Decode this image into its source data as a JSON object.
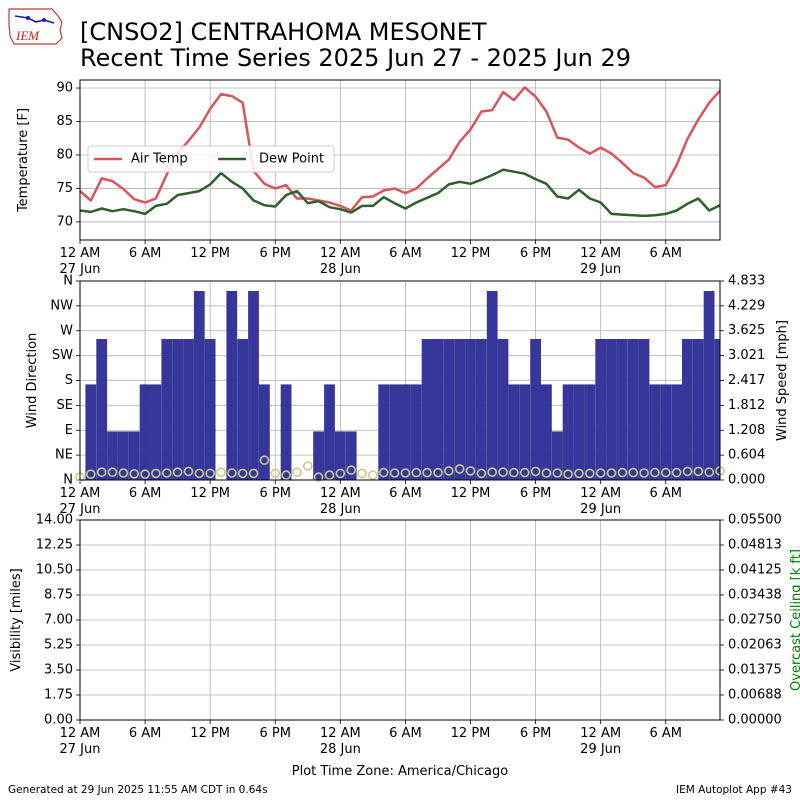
{
  "header": {
    "logo_text": "IEM",
    "title_line1": "[CNSO2] CENTRAHOMA MESONET",
    "title_line2": "Recent Time Series 2025 Jun 27 - 2025 Jun 29"
  },
  "footer": {
    "generated": "Generated at 29 Jun 2025 11:55 AM CDT in 0.64s",
    "app": "IEM Autoplot App #43"
  },
  "colors": {
    "air_temp": "#d9545c",
    "dew_point": "#2f5f2f",
    "wind_dir_bars": "#333399",
    "wind_speed_markers": "#c8c88c",
    "ceiling_label": "#008000",
    "grid": "#b0b0b0"
  },
  "chart_data": [
    {
      "type": "line",
      "title": "",
      "xlabel": "",
      "ylabel": "Temperature [F]",
      "ylim": [
        67.3,
        91.2
      ],
      "xlim_hours": [
        0,
        59
      ],
      "x_ticks": [
        "12 AM",
        "6 AM",
        "12 PM",
        "6 PM",
        "12 AM",
        "6 AM",
        "12 PM",
        "6 PM",
        "12 AM",
        "6 AM"
      ],
      "x_tick_hours": [
        0,
        6,
        12,
        18,
        24,
        30,
        36,
        42,
        48,
        54
      ],
      "date_labels": [
        {
          "hour": 0,
          "text": "27 Jun"
        },
        {
          "hour": 24,
          "text": "28 Jun"
        },
        {
          "hour": 48,
          "text": "29 Jun"
        }
      ],
      "y_ticks": [
        70,
        75,
        80,
        85,
        90
      ],
      "grid": true,
      "legend": "center-left",
      "series": [
        {
          "name": "Air Temp",
          "x": [
            0,
            1,
            2,
            3,
            4,
            5,
            6,
            7,
            8,
            9,
            10,
            11,
            12,
            13,
            14,
            15,
            16,
            17,
            18,
            19,
            20,
            21,
            22,
            23,
            24,
            25,
            26,
            27,
            28,
            29,
            30,
            31,
            32,
            33,
            34,
            35,
            36,
            37,
            38,
            39,
            40,
            41,
            42,
            43,
            44,
            45,
            46,
            47,
            48,
            49,
            50,
            51,
            52,
            53,
            54,
            55,
            56,
            57,
            58,
            59
          ],
          "values": [
            74.6,
            73.2,
            76.5,
            76.1,
            74.9,
            73.4,
            72.9,
            73.5,
            77.1,
            80.3,
            82.1,
            84.1,
            86.9,
            89.1,
            88.8,
            87.8,
            77.6,
            75.7,
            75.0,
            75.5,
            73.5,
            73.5,
            73.2,
            72.9,
            72.4,
            71.7,
            73.7,
            73.8,
            74.7,
            75.0,
            74.3,
            75.0,
            76.5,
            77.9,
            79.3,
            82.0,
            83.8,
            86.5,
            86.7,
            89.4,
            88.2,
            90.1,
            88.7,
            86.5,
            82.6,
            82.3,
            81.1,
            80.2,
            81.1,
            80.2,
            78.8,
            77.3,
            76.6,
            75.2,
            75.5,
            78.5,
            82.4,
            85.3,
            87.8,
            89.6
          ]
        },
        {
          "name": "Dew Point",
          "x": [
            0,
            1,
            2,
            3,
            4,
            5,
            6,
            7,
            8,
            9,
            10,
            11,
            12,
            13,
            14,
            15,
            16,
            17,
            18,
            19,
            20,
            21,
            22,
            23,
            24,
            25,
            26,
            27,
            28,
            29,
            30,
            31,
            32,
            33,
            34,
            35,
            36,
            37,
            38,
            39,
            40,
            41,
            42,
            43,
            44,
            45,
            46,
            47,
            48,
            49,
            50,
            51,
            52,
            53,
            54,
            55,
            56,
            57,
            58,
            59
          ],
          "values": [
            71.7,
            71.5,
            72.0,
            71.6,
            71.9,
            71.6,
            71.2,
            72.4,
            72.7,
            74.0,
            74.3,
            74.6,
            75.6,
            77.3,
            76.0,
            75.0,
            73.2,
            72.5,
            72.3,
            74.0,
            74.6,
            72.8,
            73.1,
            72.2,
            71.9,
            71.4,
            72.4,
            72.4,
            73.7,
            72.8,
            72.0,
            72.9,
            73.6,
            74.3,
            75.6,
            76.0,
            75.7,
            76.3,
            77.0,
            77.8,
            77.5,
            77.2,
            76.4,
            75.7,
            73.8,
            73.5,
            74.8,
            73.5,
            72.9,
            71.2,
            71.1,
            71.0,
            70.9,
            71.0,
            71.2,
            71.7,
            72.7,
            73.5,
            71.7,
            72.5
          ]
        }
      ]
    },
    {
      "type": "bar",
      "title": "",
      "xlabel": "",
      "ylabel": "Wind Direction",
      "y2label": "Wind Speed [mph]",
      "ylim": [
        0,
        360
      ],
      "y2lim": [
        0,
        4.833
      ],
      "x_ticks": [
        "12 AM",
        "6 AM",
        "12 PM",
        "6 PM",
        "12 AM",
        "6 AM",
        "12 PM",
        "6 PM",
        "12 AM",
        "6 AM"
      ],
      "x_tick_hours": [
        0,
        6,
        12,
        18,
        24,
        30,
        36,
        42,
        48,
        54
      ],
      "date_labels": [
        {
          "hour": 0,
          "text": "27 Jun"
        },
        {
          "hour": 24,
          "text": "28 Jun"
        },
        {
          "hour": 48,
          "text": "29 Jun"
        }
      ],
      "y_ticks": [
        "N",
        "NE",
        "E",
        "SE",
        "S",
        "SW",
        "W",
        "NW",
        "N"
      ],
      "y_tick_values": [
        0,
        45,
        90,
        135,
        180,
        225,
        270,
        315,
        360
      ],
      "y2_ticks": [
        "0.000",
        "0.604",
        "1.208",
        "1.812",
        "2.417",
        "3.021",
        "3.625",
        "4.229",
        "4.833"
      ],
      "grid": true,
      "series": [
        {
          "name": "Wind Direction",
          "x": [
            0,
            1,
            2,
            3,
            4,
            5,
            6,
            7,
            8,
            9,
            10,
            11,
            12,
            13,
            14,
            15,
            16,
            17,
            18,
            19,
            20,
            21,
            22,
            23,
            24,
            25,
            26,
            27,
            28,
            29,
            30,
            31,
            32,
            33,
            34,
            35,
            36,
            37,
            38,
            39,
            40,
            41,
            42,
            43,
            44,
            45,
            46,
            47,
            48,
            49,
            50,
            51,
            52,
            53,
            54,
            55,
            56,
            57,
            58,
            59
          ],
          "values": [
            0,
            173,
            255,
            88,
            88,
            88,
            173,
            173,
            255,
            255,
            255,
            342,
            255,
            0,
            342,
            255,
            342,
            173,
            0,
            173,
            0,
            0,
            88,
            173,
            88,
            88,
            0,
            0,
            173,
            173,
            173,
            173,
            255,
            255,
            255,
            255,
            255,
            255,
            342,
            255,
            173,
            173,
            255,
            173,
            88,
            173,
            173,
            173,
            255,
            255,
            255,
            255,
            255,
            173,
            173,
            173,
            255,
            255,
            342,
            255
          ]
        },
        {
          "name": "Wind Speed",
          "x": [
            0,
            1,
            2,
            3,
            4,
            5,
            6,
            7,
            8,
            9,
            10,
            11,
            12,
            13,
            14,
            15,
            16,
            17,
            18,
            19,
            20,
            21,
            22,
            23,
            24,
            25,
            26,
            27,
            28,
            29,
            30,
            31,
            32,
            33,
            34,
            35,
            36,
            37,
            38,
            39,
            40,
            41,
            42,
            43,
            44,
            45,
            46,
            47,
            48,
            49,
            50,
            51,
            52,
            53,
            54,
            55,
            56,
            57,
            58,
            59
          ],
          "values": [
            0.07,
            0.14,
            0.19,
            0.19,
            0.17,
            0.15,
            0.14,
            0.16,
            0.17,
            0.19,
            0.21,
            0.16,
            0.16,
            0.19,
            0.17,
            0.16,
            0.16,
            0.48,
            0.16,
            0.12,
            0.19,
            0.34,
            0.07,
            0.12,
            0.16,
            0.24,
            0.16,
            0.12,
            0.18,
            0.17,
            0.17,
            0.18,
            0.18,
            0.18,
            0.22,
            0.27,
            0.22,
            0.16,
            0.19,
            0.19,
            0.18,
            0.18,
            0.21,
            0.17,
            0.17,
            0.14,
            0.16,
            0.16,
            0.17,
            0.17,
            0.18,
            0.18,
            0.17,
            0.18,
            0.18,
            0.18,
            0.21,
            0.21,
            0.19,
            0.22
          ]
        }
      ]
    },
    {
      "type": "line",
      "title": "",
      "xlabel": "Plot Time Zone: America/Chicago",
      "ylabel": "Visibility [miles]",
      "y2label": "Overcast Ceiling [k ft]",
      "ylim": [
        0,
        14
      ],
      "y2lim": [
        0,
        0.055
      ],
      "x_ticks": [
        "12 AM",
        "6 AM",
        "12 PM",
        "6 PM",
        "12 AM",
        "6 AM",
        "12 PM",
        "6 PM",
        "12 AM",
        "6 AM"
      ],
      "x_tick_hours": [
        0,
        6,
        12,
        18,
        24,
        30,
        36,
        42,
        48,
        54
      ],
      "date_labels": [
        {
          "hour": 0,
          "text": "27 Jun"
        },
        {
          "hour": 24,
          "text": "28 Jun"
        },
        {
          "hour": 48,
          "text": "29 Jun"
        }
      ],
      "y_ticks": [
        "0.00",
        "1.75",
        "3.50",
        "5.25",
        "7.00",
        "8.75",
        "10.50",
        "12.25",
        "14.00"
      ],
      "y2_ticks": [
        "0.00000",
        "0.00688",
        "0.01375",
        "0.02063",
        "0.02750",
        "0.03438",
        "0.04125",
        "0.04813",
        "0.05500"
      ],
      "grid": true,
      "series": []
    }
  ]
}
